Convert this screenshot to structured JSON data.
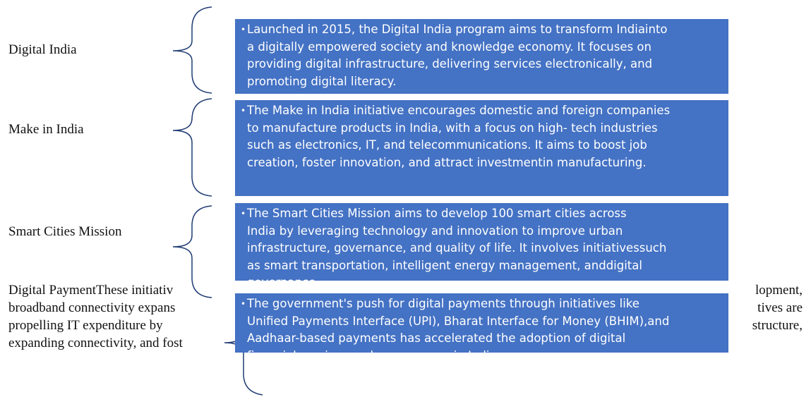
{
  "items": [
    {
      "label": "Digital India",
      "lines": [
        "Launched in 2015, the Digital India program aims to transform Indiainto",
        "a digitally empowered society and knowledge economy. It focuses on",
        "providing digital infrastructure, delivering services electronically, and",
        "promoting digital literacy."
      ]
    },
    {
      "label": "Make in India",
      "lines": [
        "The Make in India initiative encourages domestic and foreign companies",
        "to manufacture products in India, with a focus on high- tech industries",
        "such as electronics, IT, and telecommunications. It aims to boost job",
        "creation, foster innovation, and attract investmentin manufacturing."
      ]
    },
    {
      "label": "Smart Cities Mission",
      "lines": [
        "The Smart Cities Mission aims to develop 100 smart cities across",
        "India by leveraging technology and innovation to improve urban",
        "infrastructure, governance, and quality of life. It involves initiativessuch",
        "as smart transportation, intelligent energy management, anddigital",
        "governance."
      ]
    },
    {
      "lines": [
        "The government's push for digital payments through initiatives like",
        "Unified Payments Interface (UPI), Bharat Interface for Money (BHIM),and",
        "Aadhaar-based payments has accelerated the adoption of digital",
        "financial services and e-commerce in India."
      ]
    }
  ],
  "paragraph": [
    {
      "left": "Digital PaymentThese initiativ",
      "right": "lopment,"
    },
    {
      "left": "broadband connectivity expans",
      "right": "tives are"
    },
    {
      "left": "propelling IT expenditure by",
      "right": "structure,"
    },
    {
      "left": "expanding connectivity, and fost",
      "right": ""
    }
  ]
}
